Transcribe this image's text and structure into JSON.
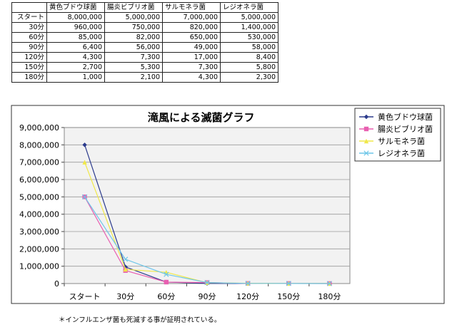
{
  "table": {
    "headers": [
      "黄色ブドウ球菌",
      "腸炎ビブリオ菌",
      "サルモネラ菌",
      "レジオネラ菌"
    ],
    "rows": [
      {
        "label": "スタート",
        "values": [
          "8,000,000",
          "5,000,000",
          "7,000,000",
          "5,000,000"
        ]
      },
      {
        "label": "30分",
        "values": [
          "960,000",
          "750,000",
          "820,000",
          "1,400,000"
        ]
      },
      {
        "label": "60分",
        "values": [
          "85,000",
          "82,000",
          "650,000",
          "530,000"
        ]
      },
      {
        "label": "90分",
        "values": [
          "6,400",
          "56,000",
          "49,000",
          "58,000"
        ]
      },
      {
        "label": "120分",
        "values": [
          "4,300",
          "7,300",
          "17,000",
          "8,400"
        ]
      },
      {
        "label": "150分",
        "values": [
          "2,700",
          "5,300",
          "7,300",
          "5,800"
        ]
      },
      {
        "label": "180分",
        "values": [
          "1,000",
          "2,100",
          "4,300",
          "2,300"
        ]
      }
    ]
  },
  "chart_data": {
    "type": "line",
    "title": "滝風による滅菌グラフ",
    "x": [
      "スタート",
      "30分",
      "60分",
      "90分",
      "120分",
      "150分",
      "180分"
    ],
    "ylim": [
      0,
      9000000
    ],
    "yticks": [
      "0",
      "1,000,000",
      "2,000,000",
      "3,000,000",
      "4,000,000",
      "5,000,000",
      "6,000,000",
      "7,000,000",
      "8,000,000",
      "9,000,000"
    ],
    "grid": true,
    "legend": "right",
    "series": [
      {
        "name": "黄色ブドウ球菌",
        "color": "#2b3a8c",
        "marker": "diamond",
        "values": [
          8000000,
          960000,
          85000,
          6400,
          4300,
          2700,
          1000
        ]
      },
      {
        "name": "腸炎ビブリオ菌",
        "color": "#e85fb0",
        "marker": "square",
        "values": [
          5000000,
          750000,
          82000,
          56000,
          7300,
          5300,
          2100
        ]
      },
      {
        "name": "サルモネラ菌",
        "color": "#f0e84a",
        "marker": "triangle",
        "values": [
          7000000,
          820000,
          650000,
          49000,
          17000,
          7300,
          4300
        ]
      },
      {
        "name": "レジオネラ菌",
        "color": "#6ec6e8",
        "marker": "x",
        "values": [
          5000000,
          1400000,
          530000,
          58000,
          8400,
          5800,
          2300
        ]
      }
    ]
  },
  "note": "＊インフルエンザ菌も死滅する事が証明されている。"
}
